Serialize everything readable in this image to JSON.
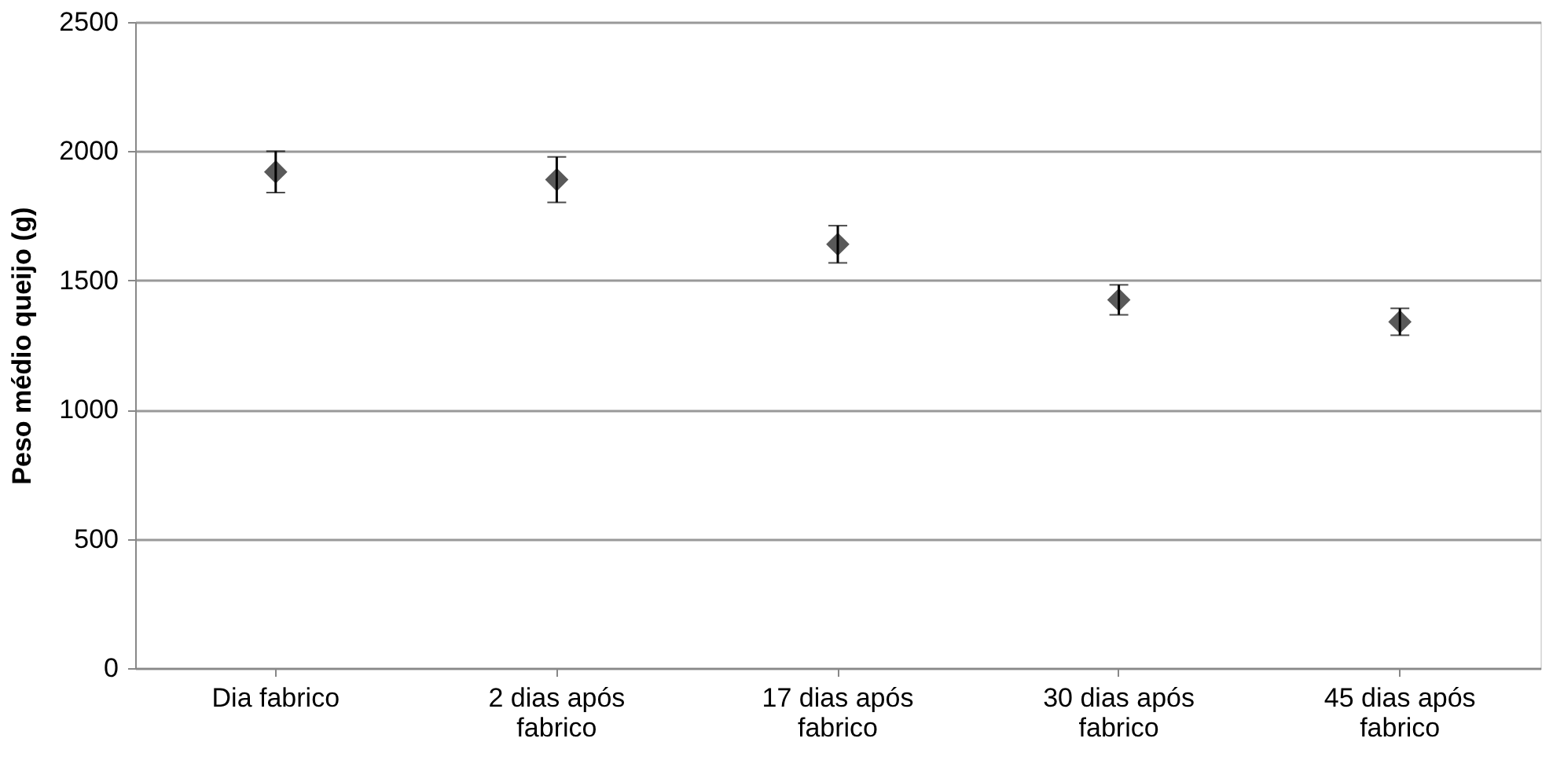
{
  "chart_data": {
    "type": "scatter",
    "ylabel": "Peso médio queijo (g)",
    "categories": [
      "Dia fabrico",
      "2 dias após fabrico",
      "17 dias após fabrico",
      "30 dias após fabrico",
      "45 dias após fabrico"
    ],
    "series": [
      {
        "color": "#595959",
        "values": [
          1920,
          1890,
          1640,
          1425,
          1340
        ],
        "errors": [
          80,
          88,
          72,
          58,
          52
        ]
      }
    ],
    "ylim": [
      0,
      2500
    ],
    "yticks": [
      0,
      500,
      1000,
      1500,
      2000,
      2500
    ],
    "grid": "y",
    "marker": "diamond"
  }
}
